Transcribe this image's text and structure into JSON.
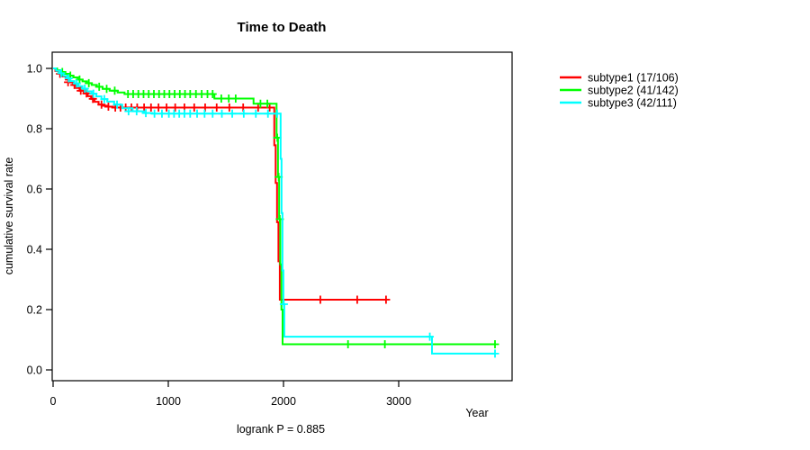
{
  "header": {
    "title": "Time to Death"
  },
  "footer": {
    "logrank_label": "logrank P = 0.885"
  },
  "axes": {
    "x": {
      "label": "Year"
    },
    "y": {
      "label": "cumulative survival rate"
    }
  },
  "chart_data": {
    "type": "line",
    "subtype": "kaplan-meier-step-curves",
    "title": "Time to Death",
    "xlabel": "Year",
    "ylabel": "cumulative survival rate",
    "annotation": "logrank P = 0.885",
    "xlim": [
      0,
      4000
    ],
    "ylim": [
      0,
      1.0
    ],
    "x_ticks": [
      0,
      1000,
      2000,
      3000
    ],
    "y_ticks": [
      0.0,
      0.2,
      0.4,
      0.6,
      0.8,
      1.0
    ],
    "grid": false,
    "legend_position": "right-outside",
    "series": [
      {
        "name": "subtype1 (17/106)",
        "color": "#ff0000",
        "end": 2890,
        "steps": [
          [
            0,
            1.0
          ],
          [
            20,
            0.991
          ],
          [
            50,
            0.982
          ],
          [
            80,
            0.973
          ],
          [
            110,
            0.963
          ],
          [
            140,
            0.954
          ],
          [
            170,
            0.945
          ],
          [
            200,
            0.935
          ],
          [
            230,
            0.926
          ],
          [
            265,
            0.917
          ],
          [
            300,
            0.908
          ],
          [
            330,
            0.899
          ],
          [
            360,
            0.889
          ],
          [
            395,
            0.88
          ],
          [
            430,
            0.876
          ],
          [
            470,
            0.873
          ],
          [
            520,
            0.87
          ],
          [
            1920,
            0.745
          ],
          [
            1932,
            0.62
          ],
          [
            1944,
            0.49
          ],
          [
            1956,
            0.36
          ],
          [
            1968,
            0.233
          ]
        ],
        "censors": [
          [
            60,
            0.982
          ],
          [
            130,
            0.954
          ],
          [
            185,
            0.945
          ],
          [
            240,
            0.926
          ],
          [
            290,
            0.917
          ],
          [
            345,
            0.899
          ],
          [
            420,
            0.88
          ],
          [
            480,
            0.873
          ],
          [
            540,
            0.87
          ],
          [
            585,
            0.87
          ],
          [
            630,
            0.87
          ],
          [
            680,
            0.87
          ],
          [
            730,
            0.87
          ],
          [
            790,
            0.87
          ],
          [
            850,
            0.87
          ],
          [
            915,
            0.87
          ],
          [
            985,
            0.87
          ],
          [
            1060,
            0.87
          ],
          [
            1140,
            0.87
          ],
          [
            1225,
            0.87
          ],
          [
            1320,
            0.87
          ],
          [
            1420,
            0.87
          ],
          [
            1530,
            0.87
          ],
          [
            1650,
            0.87
          ],
          [
            1780,
            0.87
          ],
          [
            1880,
            0.87
          ],
          [
            2320,
            0.233
          ],
          [
            2640,
            0.233
          ],
          [
            2890,
            0.233
          ]
        ]
      },
      {
        "name": "subtype2 (41/142)",
        "color": "#00ff00",
        "end": 3836,
        "steps": [
          [
            0,
            1.0
          ],
          [
            35,
            0.994
          ],
          [
            70,
            0.988
          ],
          [
            105,
            0.982
          ],
          [
            140,
            0.976
          ],
          [
            175,
            0.97
          ],
          [
            215,
            0.963
          ],
          [
            255,
            0.957
          ],
          [
            295,
            0.951
          ],
          [
            335,
            0.945
          ],
          [
            380,
            0.939
          ],
          [
            430,
            0.932
          ],
          [
            490,
            0.926
          ],
          [
            560,
            0.92
          ],
          [
            620,
            0.915
          ],
          [
            1400,
            0.9
          ],
          [
            1740,
            0.883
          ],
          [
            1940,
            0.77
          ],
          [
            1952,
            0.64
          ],
          [
            1962,
            0.5
          ],
          [
            1972,
            0.35
          ],
          [
            1982,
            0.2
          ],
          [
            1992,
            0.085
          ]
        ],
        "censors": [
          [
            80,
            0.988
          ],
          [
            150,
            0.976
          ],
          [
            230,
            0.963
          ],
          [
            310,
            0.951
          ],
          [
            400,
            0.939
          ],
          [
            465,
            0.932
          ],
          [
            535,
            0.926
          ],
          [
            650,
            0.915
          ],
          [
            695,
            0.915
          ],
          [
            740,
            0.915
          ],
          [
            785,
            0.915
          ],
          [
            830,
            0.915
          ],
          [
            875,
            0.915
          ],
          [
            920,
            0.915
          ],
          [
            965,
            0.915
          ],
          [
            1010,
            0.915
          ],
          [
            1055,
            0.915
          ],
          [
            1100,
            0.915
          ],
          [
            1145,
            0.915
          ],
          [
            1190,
            0.915
          ],
          [
            1240,
            0.915
          ],
          [
            1290,
            0.915
          ],
          [
            1340,
            0.915
          ],
          [
            1385,
            0.915
          ],
          [
            1460,
            0.9
          ],
          [
            1525,
            0.9
          ],
          [
            1585,
            0.9
          ],
          [
            1800,
            0.883
          ],
          [
            1860,
            0.883
          ],
          [
            1946,
            0.77
          ],
          [
            1958,
            0.64
          ],
          [
            1968,
            0.5
          ],
          [
            2560,
            0.085
          ],
          [
            2880,
            0.085
          ],
          [
            3836,
            0.085
          ]
        ]
      },
      {
        "name": "subtype3 (42/111)",
        "color": "#00ffff",
        "end": 3836,
        "steps": [
          [
            0,
            1.0
          ],
          [
            25,
            0.992
          ],
          [
            55,
            0.984
          ],
          [
            90,
            0.975
          ],
          [
            120,
            0.967
          ],
          [
            150,
            0.958
          ],
          [
            185,
            0.95
          ],
          [
            220,
            0.941
          ],
          [
            255,
            0.933
          ],
          [
            295,
            0.924
          ],
          [
            335,
            0.916
          ],
          [
            375,
            0.907
          ],
          [
            420,
            0.898
          ],
          [
            470,
            0.89
          ],
          [
            530,
            0.88
          ],
          [
            600,
            0.868
          ],
          [
            690,
            0.858
          ],
          [
            790,
            0.852
          ],
          [
            860,
            0.85
          ],
          [
            1975,
            0.7
          ],
          [
            1983,
            0.52
          ],
          [
            1991,
            0.33
          ],
          [
            1999,
            0.218
          ],
          [
            2007,
            0.11
          ],
          [
            3289,
            0.054
          ]
        ],
        "censors": [
          [
            70,
            0.984
          ],
          [
            135,
            0.967
          ],
          [
            205,
            0.95
          ],
          [
            275,
            0.933
          ],
          [
            350,
            0.916
          ],
          [
            445,
            0.898
          ],
          [
            555,
            0.88
          ],
          [
            655,
            0.858
          ],
          [
            725,
            0.858
          ],
          [
            805,
            0.852
          ],
          [
            880,
            0.85
          ],
          [
            945,
            0.85
          ],
          [
            1005,
            0.85
          ],
          [
            1050,
            0.85
          ],
          [
            1095,
            0.85
          ],
          [
            1140,
            0.85
          ],
          [
            1190,
            0.85
          ],
          [
            1250,
            0.85
          ],
          [
            1315,
            0.85
          ],
          [
            1385,
            0.85
          ],
          [
            1465,
            0.85
          ],
          [
            1555,
            0.85
          ],
          [
            1655,
            0.85
          ],
          [
            1760,
            0.85
          ],
          [
            1865,
            0.85
          ],
          [
            1945,
            0.85
          ],
          [
            2003,
            0.218
          ],
          [
            3270,
            0.11
          ],
          [
            3836,
            0.054
          ]
        ]
      }
    ]
  }
}
